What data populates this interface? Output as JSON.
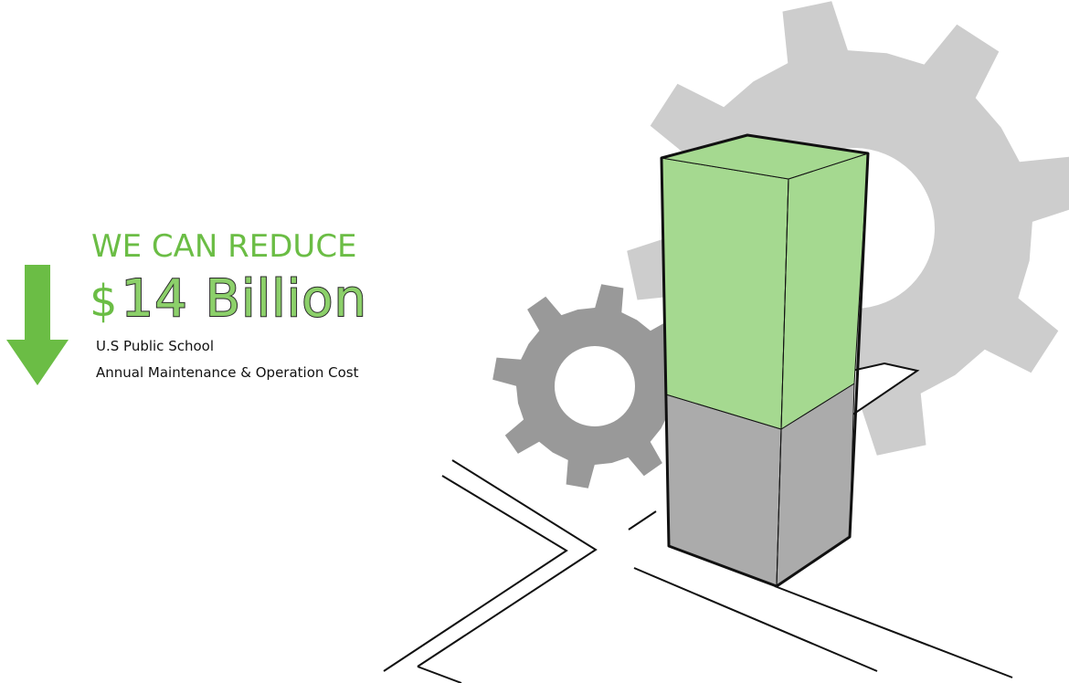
{
  "headline": "WE CAN REDUCE",
  "amount": {
    "currency": "$",
    "figure": "14 Billion"
  },
  "caption": {
    "line1": "U.S Public School",
    "line2": "Annual Maintenance & Operation Cost"
  },
  "icons": {
    "arrow": "down-arrow-icon",
    "gear_large": "gear-icon",
    "gear_small": "gear-icon"
  },
  "colors": {
    "brand_green": "#6bbd45",
    "bar_green": "#a5d990",
    "bar_gray": "#ababab",
    "gear_light": "#cdcdcd",
    "gear_dark": "#999999"
  }
}
